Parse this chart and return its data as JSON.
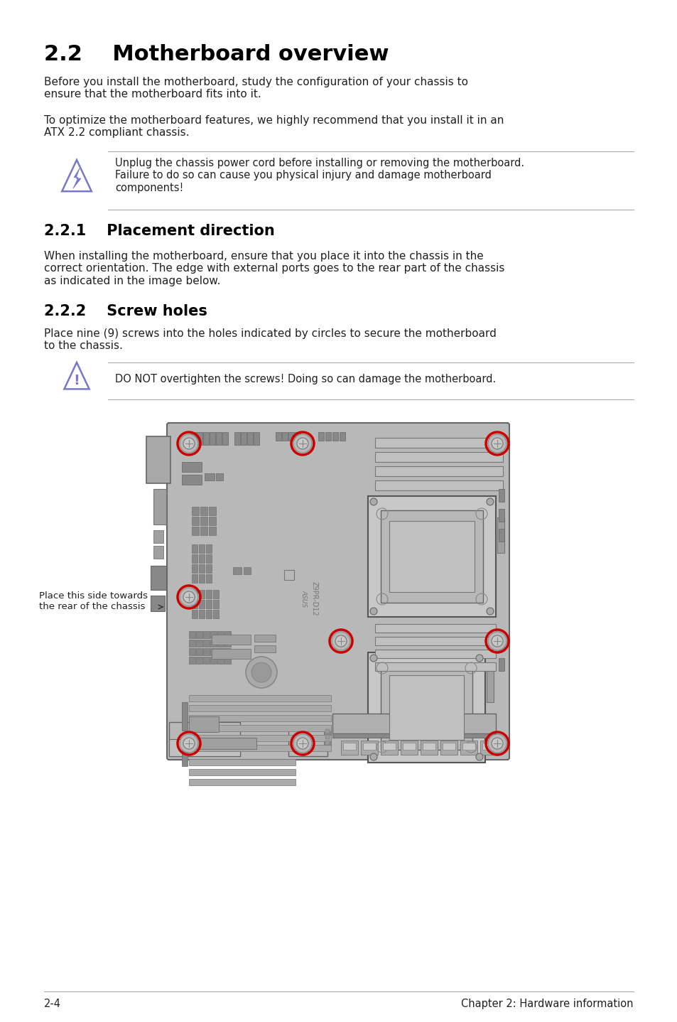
{
  "title": "2.2    Motherboard overview",
  "section_221": "2.2.1    Placement direction",
  "section_222": "2.2.2    Screw holes",
  "para1": "Before you install the motherboard, study the configuration of your chassis to\nensure that the motherboard fits into it.",
  "para2": "To optimize the motherboard features, we highly recommend that you install it in an\nATX 2.2 compliant chassis.",
  "warning1": "Unplug the chassis power cord before installing or removing the motherboard.\nFailure to do so can cause you physical injury and damage motherboard\ncomponents!",
  "para3": "When installing the motherboard, ensure that you place it into the chassis in the\ncorrect orientation. The edge with external ports goes to the rear part of the chassis\nas indicated in the image below.",
  "para4": "Place nine (9) screws into the holes indicated by circles to secure the motherboard\nto the chassis.",
  "warning2": "DO NOT overtighten the screws! Doing so can damage the motherboard.",
  "label_side": "Place this side towards\nthe rear of the chassis",
  "footer_left": "2-4",
  "footer_right": "Chapter 2: Hardware information",
  "bg_color": "#ffffff",
  "text_color": "#231f20",
  "heading_color": "#000000",
  "warn_line_color": "#aaaaaa",
  "red_color": "#cc0000",
  "board_color": "#b8b8b8",
  "board_edge": "#666666",
  "comp_color": "#a0a0a0",
  "comp_edge": "#777777",
  "dark_comp": "#888888",
  "icon_color": "#7878c8"
}
